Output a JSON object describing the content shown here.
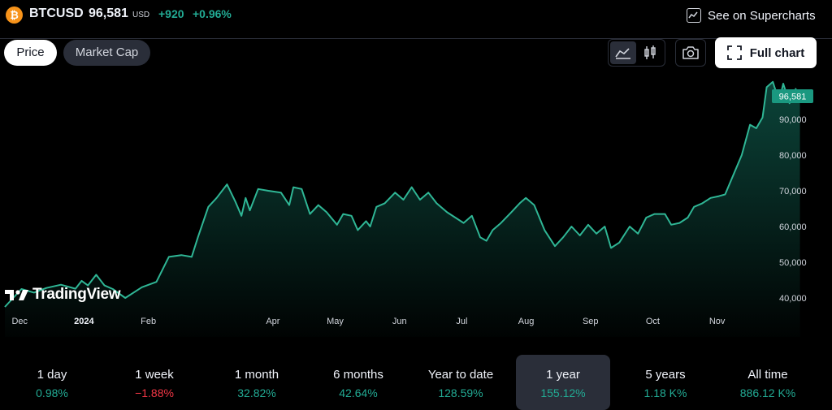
{
  "header": {
    "symbol": "BTCUSD",
    "price": "96,581",
    "currency": "USD",
    "change_abs": "+920",
    "change_pct": "+0.96%",
    "coin_icon": "bitcoin-icon",
    "supercharts_label": "See on Supercharts"
  },
  "tabs": [
    {
      "label": "Price",
      "active": true
    },
    {
      "label": "Market Cap",
      "active": false
    }
  ],
  "toolbar": {
    "chart_type_icons": [
      "area-chart-icon",
      "candlestick-icon"
    ],
    "camera_icon": "camera-icon",
    "full_chart_label": "Full chart"
  },
  "watermark": "TradingView",
  "colors": {
    "accent": "#22ab94",
    "negative": "#f23645",
    "line": "#2fb695",
    "price_tag": "#1a9880"
  },
  "chart_data": {
    "type": "area",
    "title": "",
    "last_price_label": "96,581",
    "y_ticks": [
      {
        "value": 40000,
        "label": "40,000"
      },
      {
        "value": 50000,
        "label": "50,000"
      },
      {
        "value": 60000,
        "label": "60,000"
      },
      {
        "value": 70000,
        "label": "70,000"
      },
      {
        "value": 80000,
        "label": "80,000"
      },
      {
        "value": 90000,
        "label": "90,000"
      }
    ],
    "x_ticks": [
      {
        "date": "2023-12-01",
        "label": "Dec",
        "bold": false
      },
      {
        "date": "2024-01-01",
        "label": "2024",
        "bold": true
      },
      {
        "date": "2024-02-01",
        "label": "Feb",
        "bold": false
      },
      {
        "date": "2024-04-01",
        "label": "Apr",
        "bold": false
      },
      {
        "date": "2024-05-01",
        "label": "May",
        "bold": false
      },
      {
        "date": "2024-06-01",
        "label": "Jun",
        "bold": false
      },
      {
        "date": "2024-07-01",
        "label": "Jul",
        "bold": false
      },
      {
        "date": "2024-08-01",
        "label": "Aug",
        "bold": false
      },
      {
        "date": "2024-09-01",
        "label": "Sep",
        "bold": false
      },
      {
        "date": "2024-10-01",
        "label": "Oct",
        "bold": false
      },
      {
        "date": "2024-11-01",
        "label": "Nov",
        "bold": false
      }
    ],
    "x_range": [
      "2023-11-27",
      "2024-12-24"
    ],
    "ylim": [
      36000,
      100000
    ],
    "grid": false,
    "series": [
      {
        "points": [
          [
            "2023-11-27",
            37500
          ],
          [
            "2023-12-05",
            42500
          ],
          [
            "2023-12-11",
            41500
          ],
          [
            "2023-12-17",
            42800
          ],
          [
            "2023-12-24",
            43700
          ],
          [
            "2023-12-31",
            42600
          ],
          [
            "2024-01-03",
            44800
          ],
          [
            "2024-01-06",
            43500
          ],
          [
            "2024-01-10",
            46500
          ],
          [
            "2024-01-14",
            43500
          ],
          [
            "2024-01-18",
            42500
          ],
          [
            "2024-01-24",
            40000
          ],
          [
            "2024-02-01",
            43000
          ],
          [
            "2024-02-08",
            44500
          ],
          [
            "2024-02-14",
            51500
          ],
          [
            "2024-02-20",
            52000
          ],
          [
            "2024-02-25",
            51500
          ],
          [
            "2024-02-28",
            57000
          ],
          [
            "2024-03-04",
            65500
          ],
          [
            "2024-03-08",
            68000
          ],
          [
            "2024-03-13",
            71800
          ],
          [
            "2024-03-17",
            67000
          ],
          [
            "2024-03-20",
            63000
          ],
          [
            "2024-03-22",
            68000
          ],
          [
            "2024-03-24",
            64500
          ],
          [
            "2024-03-28",
            70500
          ],
          [
            "2024-04-02",
            70000
          ],
          [
            "2024-04-08",
            69500
          ],
          [
            "2024-04-12",
            66000
          ],
          [
            "2024-04-14",
            71000
          ],
          [
            "2024-04-18",
            70500
          ],
          [
            "2024-04-22",
            63500
          ],
          [
            "2024-04-26",
            66000
          ],
          [
            "2024-04-30",
            64000
          ],
          [
            "2024-05-05",
            60500
          ],
          [
            "2024-05-08",
            63500
          ],
          [
            "2024-05-12",
            63000
          ],
          [
            "2024-05-15",
            59000
          ],
          [
            "2024-05-19",
            61500
          ],
          [
            "2024-05-21",
            60000
          ],
          [
            "2024-05-24",
            65500
          ],
          [
            "2024-05-28",
            66500
          ],
          [
            "2024-06-02",
            69500
          ],
          [
            "2024-06-06",
            67500
          ],
          [
            "2024-06-10",
            71000
          ],
          [
            "2024-06-14",
            67500
          ],
          [
            "2024-06-18",
            69500
          ],
          [
            "2024-06-22",
            66500
          ],
          [
            "2024-06-27",
            64000
          ],
          [
            "2024-07-01",
            62500
          ],
          [
            "2024-07-05",
            61000
          ],
          [
            "2024-07-09",
            63000
          ],
          [
            "2024-07-13",
            57000
          ],
          [
            "2024-07-16",
            56000
          ],
          [
            "2024-07-19",
            59000
          ],
          [
            "2024-07-23",
            61000
          ],
          [
            "2024-07-28",
            64000
          ],
          [
            "2024-08-01",
            66500
          ],
          [
            "2024-08-04",
            68000
          ],
          [
            "2024-08-08",
            66000
          ],
          [
            "2024-08-13",
            59000
          ],
          [
            "2024-08-18",
            54500
          ],
          [
            "2024-08-22",
            57000
          ],
          [
            "2024-08-26",
            60000
          ],
          [
            "2024-08-30",
            57500
          ],
          [
            "2024-09-03",
            60500
          ],
          [
            "2024-09-07",
            58000
          ],
          [
            "2024-09-11",
            60000
          ],
          [
            "2024-09-14",
            54000
          ],
          [
            "2024-09-18",
            55500
          ],
          [
            "2024-09-23",
            60000
          ],
          [
            "2024-09-27",
            58000
          ],
          [
            "2024-10-01",
            62500
          ],
          [
            "2024-10-05",
            63500
          ],
          [
            "2024-10-10",
            63500
          ],
          [
            "2024-10-13",
            60500
          ],
          [
            "2024-10-17",
            61000
          ],
          [
            "2024-10-21",
            62500
          ],
          [
            "2024-10-24",
            65500
          ],
          [
            "2024-10-28",
            66500
          ],
          [
            "2024-11-01",
            68000
          ],
          [
            "2024-11-05",
            68500
          ],
          [
            "2024-11-08",
            69000
          ],
          [
            "2024-11-12",
            74500
          ],
          [
            "2024-11-16",
            80000
          ],
          [
            "2024-11-20",
            88500
          ],
          [
            "2024-11-23",
            87500
          ],
          [
            "2024-11-26",
            90500
          ],
          [
            "2024-11-28",
            99000
          ],
          [
            "2024-12-01",
            100500
          ],
          [
            "2024-12-04",
            95000
          ],
          [
            "2024-12-06",
            100000
          ],
          [
            "2024-12-09",
            94500
          ],
          [
            "2024-12-12",
            98500
          ],
          [
            "2024-12-14",
            96581
          ]
        ]
      }
    ]
  },
  "periods": [
    {
      "label": "1 day",
      "value": "0.98%",
      "sign": "pos",
      "active": false
    },
    {
      "label": "1 week",
      "value": "−1.88%",
      "sign": "neg",
      "active": false
    },
    {
      "label": "1 month",
      "value": "32.82%",
      "sign": "pos",
      "active": false
    },
    {
      "label": "6 months",
      "value": "42.64%",
      "sign": "pos",
      "active": false
    },
    {
      "label": "Year to date",
      "value": "128.59%",
      "sign": "pos",
      "active": false
    },
    {
      "label": "1 year",
      "value": "155.12%",
      "sign": "pos",
      "active": true
    },
    {
      "label": "5 years",
      "value": "1.18 K%",
      "sign": "pos",
      "active": false
    },
    {
      "label": "All time",
      "value": "886.12 K%",
      "sign": "pos",
      "active": false
    }
  ]
}
